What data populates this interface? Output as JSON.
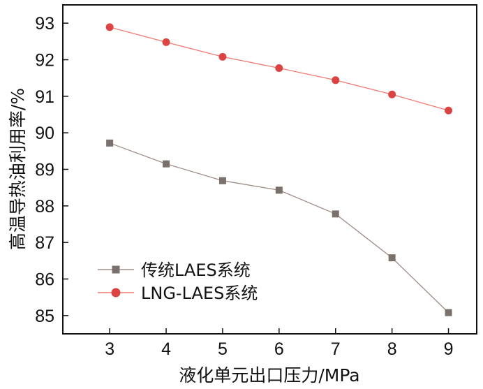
{
  "chart_data": {
    "type": "line",
    "title": "",
    "xlabel": "液化单元出口压力/MPa",
    "ylabel": "高温导热油利用率/%",
    "x": [
      3,
      4,
      5,
      6,
      7,
      8,
      9
    ],
    "xlim": [
      2.17,
      9.5
    ],
    "ylim": [
      84.5,
      93.5
    ],
    "xticks": [
      "3",
      "4",
      "5",
      "6",
      "7",
      "8",
      "9"
    ],
    "yticks": [
      "85",
      "86",
      "87",
      "88",
      "89",
      "90",
      "91",
      "92",
      "93"
    ],
    "grid": false,
    "legend_position": "bottom-left",
    "series": [
      {
        "name": "传统LAES系统",
        "marker": "square",
        "line_color": "#a08c88",
        "marker_color": "#7a706c",
        "values": [
          89.72,
          89.15,
          88.69,
          88.43,
          87.78,
          86.58,
          85.08
        ]
      },
      {
        "name": "LNG-LAES系统",
        "marker": "circle",
        "line_color": "#ee7b72",
        "marker_color": "#dc4444",
        "values": [
          92.89,
          92.48,
          92.08,
          91.77,
          91.44,
          91.05,
          90.61
        ]
      }
    ]
  }
}
